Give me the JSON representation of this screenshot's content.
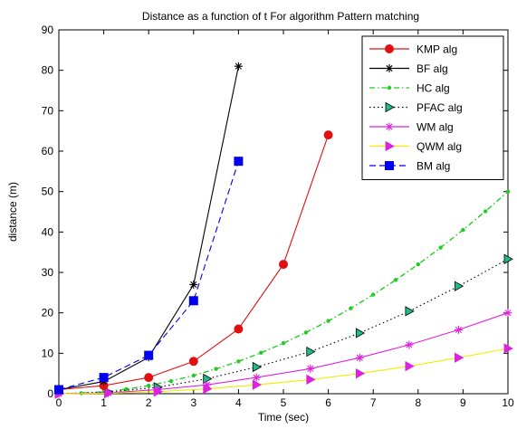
{
  "chart_data": {
    "type": "line",
    "title": "Distance as a function of t For algorithm Pattern matching",
    "xlabel": "Time (sec)",
    "ylabel": "distance (m)",
    "xlim": [
      0,
      10
    ],
    "ylim": [
      0,
      90
    ],
    "xticks": [
      "0",
      "1",
      "2",
      "3",
      "4",
      "5",
      "6",
      "7",
      "8",
      "9",
      "10"
    ],
    "yticks": [
      "0",
      "10",
      "20",
      "30",
      "40",
      "50",
      "60",
      "70",
      "80",
      "90"
    ],
    "grid": false,
    "legend_position": "top-right",
    "series": [
      {
        "name": "KMP alg",
        "color": "#e01010",
        "marker": "circle",
        "dash": "solid",
        "x": [
          0,
          1,
          2,
          3,
          4,
          5,
          6
        ],
        "y": [
          1,
          2,
          4,
          8,
          16,
          32,
          64
        ]
      },
      {
        "name": "BF alg",
        "color": "#000000",
        "marker": "star",
        "dash": "solid",
        "x": [
          0,
          1,
          2,
          3,
          4
        ],
        "y": [
          1,
          3,
          9,
          27,
          81
        ]
      },
      {
        "name": "HC alg",
        "color": "#22cc22",
        "marker": "dot",
        "dash": "dashdot",
        "x": [
          0,
          0.5,
          1,
          1.5,
          2,
          2.5,
          3,
          3.5,
          4,
          4.5,
          5,
          5.5,
          6,
          6.5,
          7,
          7.5,
          8,
          8.5,
          9,
          9.5,
          10
        ],
        "y": [
          0,
          0.13,
          0.5,
          1.13,
          2,
          3.13,
          4.5,
          6.13,
          8,
          10.13,
          12.5,
          15.13,
          18,
          21.13,
          24.5,
          28.13,
          32,
          36.13,
          40.5,
          45.13,
          50
        ]
      },
      {
        "name": "PFAC alg",
        "color": "#000000",
        "marker": "triangle-right",
        "marker_fill": "#22bb88",
        "dash": "dotted",
        "x": [
          0,
          1.1,
          2.2,
          3.3,
          4.4,
          5.6,
          6.7,
          7.8,
          8.9,
          10
        ],
        "y": [
          0,
          0.4,
          1.6,
          3.7,
          6.6,
          10.4,
          15,
          20.4,
          26.6,
          33.3
        ]
      },
      {
        "name": "WM alg",
        "color": "#dd22dd",
        "marker": "star",
        "dash": "solid",
        "x": [
          0,
          1.1,
          2.2,
          3.3,
          4.4,
          5.6,
          6.7,
          7.8,
          8.9,
          10
        ],
        "y": [
          0,
          0.2,
          1,
          2.2,
          4,
          6.2,
          8.9,
          12.1,
          15.8,
          20
        ]
      },
      {
        "name": "QWM alg",
        "color": "#eeee00",
        "marker": "triangle-right",
        "marker_fill": "#dd22dd",
        "dash": "solid",
        "x": [
          0,
          1.1,
          2.2,
          3.3,
          4.4,
          5.6,
          6.7,
          7.8,
          8.9,
          10
        ],
        "y": [
          0,
          0.1,
          0.5,
          1.2,
          2.2,
          3.5,
          5,
          6.8,
          8.9,
          11.2
        ]
      },
      {
        "name": "BM alg",
        "color": "#0000ee",
        "marker": "square",
        "dash": "dashed",
        "x": [
          0,
          1,
          2,
          3,
          4
        ],
        "y": [
          1,
          4,
          9.5,
          23,
          57.5
        ]
      }
    ]
  }
}
